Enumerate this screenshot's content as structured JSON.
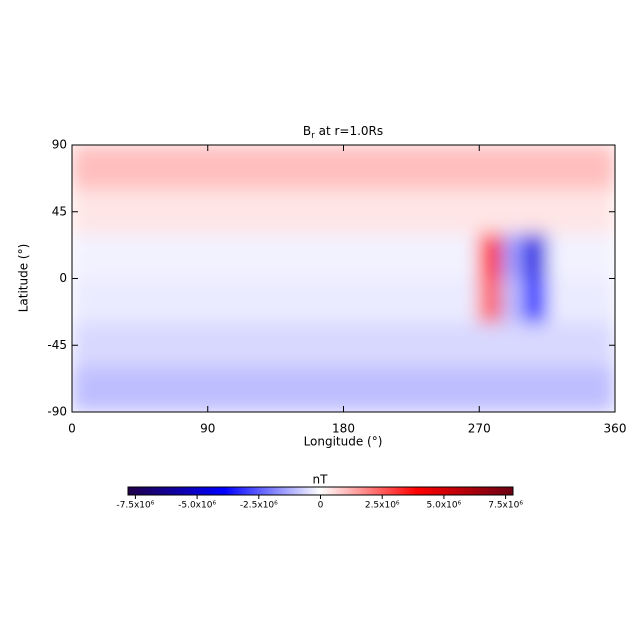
{
  "chart_data": {
    "type": "heatmap",
    "title": "B",
    "title_subscript": "r",
    "title_rest": " at r=1.0Rs",
    "xlabel": "Longitude (°)",
    "ylabel": "Latitude (°)",
    "xlim": [
      0,
      360
    ],
    "xticks": [
      0,
      90,
      180,
      270,
      360
    ],
    "ylim": [
      -90,
      90
    ],
    "yticks": [
      -90,
      -45,
      0,
      45,
      90
    ],
    "xbins": [
      0,
      15,
      30,
      45,
      60,
      75,
      90,
      105,
      120,
      135,
      150,
      165,
      180,
      195,
      210,
      225,
      240,
      255,
      270,
      285,
      300,
      315,
      330,
      345,
      360
    ],
    "ybins": [
      90,
      60,
      30,
      0,
      -30,
      -60,
      -90
    ],
    "values": [
      [
        1000000,
        1000000,
        1000000,
        1000000,
        1000000,
        1000000,
        1000000,
        1000000,
        1000000,
        1000000,
        1000000,
        1000000,
        1000000,
        1000000,
        1000000,
        1000000,
        1000000,
        1000000,
        1000000,
        1000000,
        1000000,
        1000000,
        1000000,
        1000000
      ],
      [
        400000,
        400000,
        400000,
        400000,
        400000,
        400000,
        400000,
        400000,
        400000,
        400000,
        400000,
        400000,
        400000,
        400000,
        400000,
        400000,
        400000,
        400000,
        400000,
        400000,
        400000,
        400000,
        400000,
        400000
      ],
      [
        -200000,
        -200000,
        -200000,
        -200000,
        -200000,
        -200000,
        -200000,
        -200000,
        -200000,
        -200000,
        -200000,
        -200000,
        -200000,
        -200000,
        -200000,
        -200000,
        -200000,
        -200000,
        3500000,
        -1500000,
        -4500000,
        -200000,
        -200000,
        -200000
      ],
      [
        -300000,
        -300000,
        -300000,
        -300000,
        -300000,
        -300000,
        -300000,
        -300000,
        -300000,
        -300000,
        -300000,
        -300000,
        -300000,
        -300000,
        -300000,
        -300000,
        -300000,
        -300000,
        2500000,
        -1000000,
        -3500000,
        -300000,
        -300000,
        -300000
      ],
      [
        -600000,
        -600000,
        -600000,
        -600000,
        -600000,
        -600000,
        -600000,
        -600000,
        -600000,
        -600000,
        -600000,
        -600000,
        -600000,
        -600000,
        -600000,
        -600000,
        -600000,
        -600000,
        -600000,
        -600000,
        -600000,
        -600000,
        -600000,
        -600000
      ],
      [
        -1000000,
        -1000000,
        -1000000,
        -1000000,
        -1000000,
        -1000000,
        -1000000,
        -1000000,
        -1000000,
        -1000000,
        -1000000,
        -1000000,
        -1000000,
        -1000000,
        -1000000,
        -1000000,
        -1000000,
        -1000000,
        -1000000,
        -1000000,
        -1000000,
        -1000000,
        -1000000,
        -1000000
      ]
    ],
    "colorbar": {
      "label": "nT",
      "lim": [
        -7800000,
        7800000
      ],
      "colors": [
        "#200048",
        "#0000ff",
        "#ffffff",
        "#ff0000",
        "#6a0014"
      ],
      "ticks": [
        {
          "value": -7500000,
          "label": "-7.5x10⁶"
        },
        {
          "value": -5000000,
          "label": "-5.0x10⁶"
        },
        {
          "value": -2500000,
          "label": "-2.5x10⁶"
        },
        0,
        {
          "value": 2500000,
          "label": "2.5x10⁶"
        },
        {
          "value": 5000000,
          "label": "5.0x10⁶"
        },
        {
          "value": 7500000,
          "label": "7.5x10⁶"
        }
      ]
    }
  }
}
